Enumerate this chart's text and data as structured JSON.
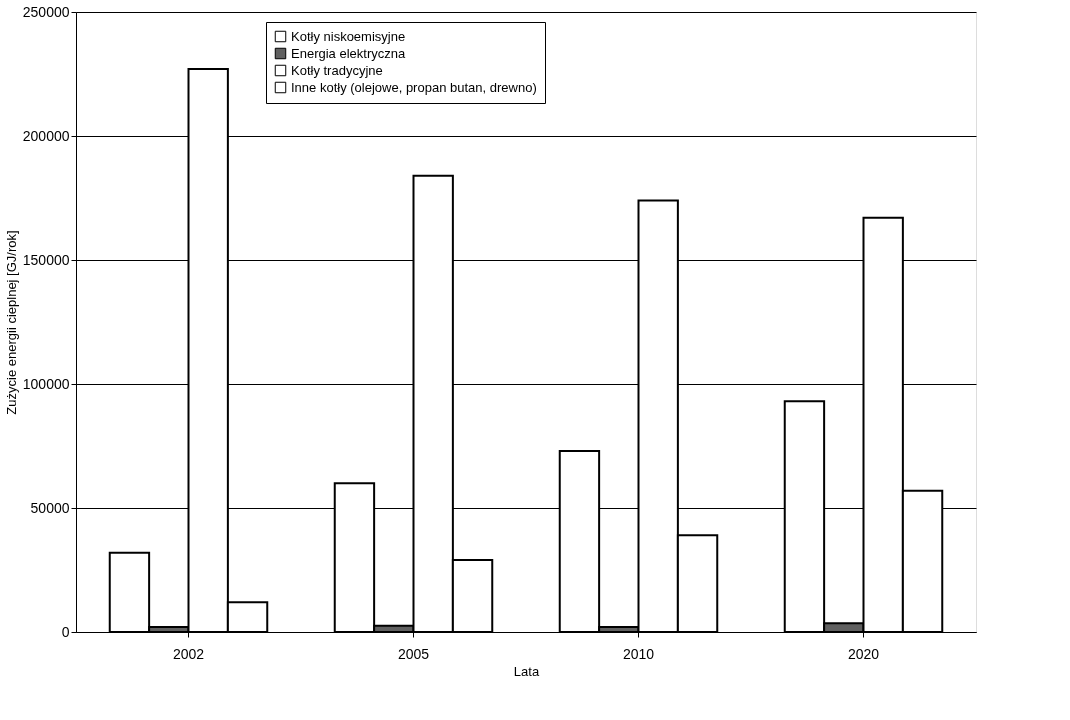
{
  "chart_data": {
    "type": "bar",
    "xlabel": "Lata",
    "ylabel": "Zużycie energii cieplnej [GJ/rok]",
    "categories": [
      "2002",
      "2005",
      "2010",
      "2020"
    ],
    "series": [
      {
        "name": "Kotły niskoemisyjne",
        "color": "#ffffff",
        "values": [
          32000,
          60000,
          73000,
          93000
        ]
      },
      {
        "name": "Energia elektryczna",
        "color": "#606060",
        "values": [
          2000,
          2500,
          2000,
          3500
        ]
      },
      {
        "name": "Kotły tradycyjne",
        "color": "#ffffff",
        "values": [
          227000,
          184000,
          174000,
          167000
        ]
      },
      {
        "name": "Inne kotły (olejowe, propan butan, drewno)",
        "color": "#ffffff",
        "values": [
          12000,
          29000,
          39000,
          57000
        ]
      }
    ],
    "ylim": [
      0,
      250000
    ],
    "yticks": [
      0,
      50000,
      100000,
      150000,
      200000,
      250000
    ],
    "grid": "y",
    "legend": "top"
  }
}
